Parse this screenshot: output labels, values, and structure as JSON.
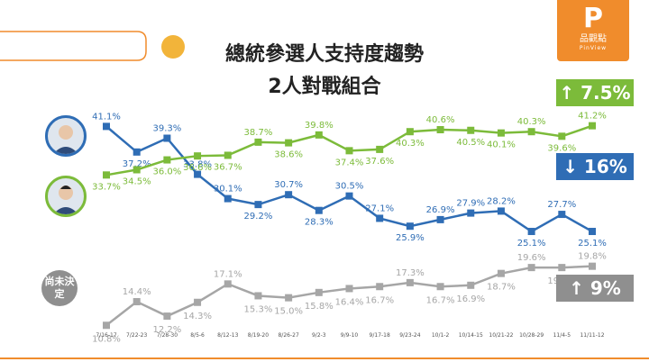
{
  "title_line1": "總統參選人支持度趨勢",
  "title_line2": "2人對戰組合",
  "logo": {
    "name": "品觀點",
    "sub": "PinView"
  },
  "undecided_label": "尚未決定",
  "badges": [
    {
      "text": "↑ 7.5%",
      "color": "#7cbb3a"
    },
    {
      "text": "↓ 16%",
      "color": "#2f6db5"
    },
    {
      "text": "↑ 9%",
      "color": "#8f8f8f"
    }
  ],
  "chart_data": {
    "type": "line",
    "categories": [
      "7/16-17",
      "7/22-23",
      "7/28-30",
      "8/5-6",
      "8/12-13",
      "8/19-20",
      "8/26-27",
      "9/2-3",
      "9/9-10",
      "9/17-18",
      "9/23-24",
      "10/1-2",
      "10/14-15",
      "10/21-22",
      "10/28-29",
      "11/4-5",
      "11/11-12"
    ],
    "ylim": [
      0,
      45
    ],
    "series": [
      {
        "name": "",
        "color": "#2f6db5",
        "values": [
          41.1,
          37.2,
          39.3,
          33.8,
          30.1,
          29.2,
          30.7,
          28.3,
          30.5,
          27.1,
          25.9,
          26.9,
          27.9,
          28.2,
          25.1,
          27.7,
          25.1
        ],
        "labels": [
          "41.1%",
          "37.2%",
          "39.3%",
          "33.8%",
          "30.1%",
          "29.2%",
          "30.7%",
          "28.3%",
          "30.5%",
          "27.1%",
          "25.9%",
          "26.9%",
          "27.9%",
          "28.2%",
          "25.1%",
          "27.7%",
          "25.1%"
        ]
      },
      {
        "name": "",
        "color": "#7cbb3a",
        "values": [
          33.7,
          34.5,
          36.0,
          36.6,
          36.7,
          38.7,
          38.6,
          39.8,
          37.4,
          37.6,
          40.3,
          40.6,
          40.5,
          40.1,
          40.3,
          39.6,
          41.2
        ],
        "labels": [
          "33.7%",
          "34.5%",
          "36.0%",
          "36.6%",
          "36.7%",
          "38.7%",
          "38.6%",
          "39.8%",
          "37.4%",
          "37.6%",
          "40.3%",
          "40.6%",
          "40.5%",
          "40.1%",
          "40.3%",
          "39.6%",
          "41.2%"
        ]
      },
      {
        "name": "",
        "color": "#a6a6a6",
        "values": [
          10.8,
          14.4,
          12.2,
          14.3,
          17.1,
          15.3,
          15.0,
          15.8,
          16.4,
          16.7,
          17.3,
          16.7,
          16.9,
          18.7,
          19.6,
          19.6,
          19.8
        ],
        "labels": [
          "10.8%",
          "14.4%",
          "12.2%",
          "14.3%",
          "17.1%",
          "15.3%",
          "15.0%",
          "15.8%",
          "16.4%",
          "16.7%",
          "17.3%",
          "16.7%",
          "16.9%",
          "18.7%",
          "19.6%",
          "19.6%",
          "19.8%"
        ]
      }
    ]
  }
}
